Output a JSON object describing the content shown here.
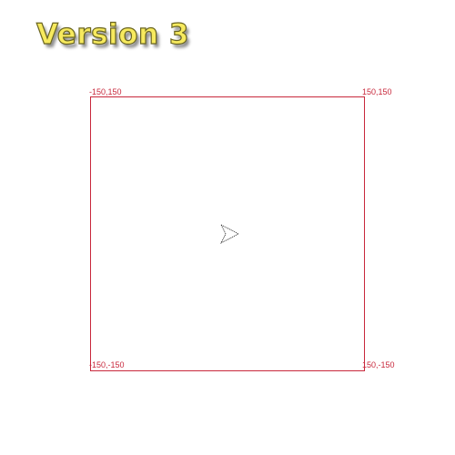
{
  "title": "Version 3",
  "canvas": {
    "corners": {
      "top_left": "-150,150",
      "top_right": "150,150",
      "bottom_left": "-150,-150",
      "bottom_right": "150,-150"
    },
    "boundary_color": "#c8283c"
  },
  "turtle": {
    "icon": "turtle-arrow-icon",
    "x": 0,
    "y": 0,
    "heading_degrees": 0
  },
  "colors": {
    "title_fill": "#f7ea5e",
    "title_stroke": "#6a6520"
  }
}
